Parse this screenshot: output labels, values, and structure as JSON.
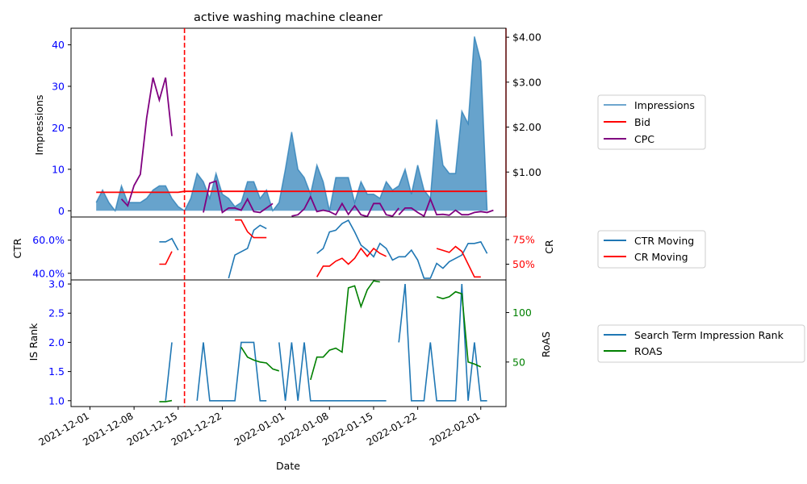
{
  "title": "active washing machine cleaner",
  "xlabel": "Date",
  "x_ticks": [
    "2021-12-01",
    "2021-12-08",
    "2021-12-15",
    "2021-12-22",
    "2022-01-01",
    "2022-01-08",
    "2022-01-15",
    "2022-01-22",
    "2022-02-01"
  ],
  "colors": {
    "impressions": "#1f77b4",
    "bid": "#ff0000",
    "cpc": "#800080",
    "ctr": "#1f77b4",
    "cr": "#ff0000",
    "isrank": "#1f77b4",
    "roas": "#008000",
    "vline": "#ff0000",
    "left_tick": "#0000ff"
  },
  "chart_data": [
    {
      "type": "area",
      "ylabel": "Impressions",
      "y_ticks": [
        "0",
        "10",
        "20",
        "30",
        "40"
      ],
      "y2_ticks": [
        "$1.00",
        "$2.00",
        "$3.00",
        "$4.00"
      ],
      "x_range": [
        "2021-11-28",
        "2022-02-05"
      ],
      "ylim": [
        -1.5,
        44
      ],
      "y2lim": [
        0,
        4.2
      ],
      "vline_date": "2021-12-16",
      "legend": [
        "Impressions",
        "Bid",
        "CPC"
      ],
      "series": [
        {
          "name": "Impressions",
          "x_start": "2021-12-02",
          "values": [
            2,
            5,
            2,
            0,
            6,
            2,
            2,
            2,
            3,
            5,
            6,
            6,
            3,
            1,
            0,
            3,
            9,
            7,
            3,
            9,
            4,
            3,
            1,
            2,
            7,
            7,
            3,
            5,
            0,
            2,
            10,
            19,
            10,
            8,
            4,
            11,
            7,
            0,
            8,
            8,
            8,
            2,
            7,
            4,
            4,
            3,
            7,
            5,
            6,
            10,
            4,
            11,
            5,
            3,
            22,
            11,
            9,
            9,
            24,
            21,
            42,
            36,
            0
          ]
        },
        {
          "name": "Bid",
          "x_start": "2021-12-02",
          "x_end": "2022-02-02",
          "values": [
            0.55,
            0.55,
            0.55,
            0.55,
            0.55,
            0.55,
            0.55,
            0.55,
            0.55,
            0.55,
            0.55,
            0.55,
            0.55,
            0.55,
            0.57,
            0.57,
            0.57,
            0.57,
            0.57,
            0.57,
            0.57,
            0.57,
            0.57,
            0.57,
            0.57,
            0.57,
            0.57,
            0.57,
            0.57,
            0.57,
            0.57,
            0.57,
            0.57,
            0.57,
            0.57,
            0.57,
            0.57,
            0.57,
            0.57,
            0.57,
            0.57,
            0.57,
            0.57,
            0.57,
            0.57,
            0.57,
            0.57,
            0.57,
            0.57,
            0.57,
            0.57,
            0.57,
            0.57,
            0.57,
            0.57,
            0.57,
            0.57,
            0.57,
            0.57,
            0.57,
            0.57,
            0.57,
            0.57
          ]
        },
        {
          "name": "CPC",
          "segments": [
            {
              "x_start": "2021-12-06",
              "values": [
                0.4,
                0.25,
                0.7,
                0.95,
                2.2,
                3.1,
                2.6,
                3.1,
                1.8
              ]
            },
            {
              "x_start": "2021-12-19",
              "values": [
                0.1,
                0.75,
                0.8,
                0.1,
                0.2,
                0.2,
                0.15,
                0.4,
                0.12,
                0.1,
                0.2,
                0.3
              ]
            },
            {
              "x_start": "2022-01-02",
              "values": [
                0.02,
                0.05,
                0.18,
                0.45,
                0.12,
                0.15,
                0.12,
                0.05,
                0.3,
                0.06,
                0.25,
                0.05,
                0.01,
                0.3,
                0.3,
                0.05,
                0.02,
                0.2
              ]
            },
            {
              "x_start": "2022-01-19",
              "values": [
                0.05,
                0.2,
                0.2,
                0.1,
                0.02,
                0.4,
                0.05,
                0.06,
                0.04,
                0.15,
                0.05,
                0.05,
                0.1,
                0.12,
                0.1,
                0.15
              ]
            }
          ]
        }
      ]
    },
    {
      "type": "line",
      "ylabel": "CTR",
      "y2label": "CR",
      "y_ticks": [
        "40.0%",
        "60.0%"
      ],
      "y2_ticks": [
        "50%",
        "75%"
      ],
      "ylim": [
        0.36,
        0.74
      ],
      "y2lim": [
        0.34,
        0.98
      ],
      "legend": [
        "CTR Moving",
        "CR Moving"
      ],
      "series": [
        {
          "name": "CTR Moving",
          "segments": [
            {
              "x_start": "2021-12-12",
              "values": [
                0.59,
                0.59,
                0.61,
                0.54
              ]
            },
            {
              "x_start": "2021-12-23",
              "values": [
                0.37,
                0.51,
                0.53,
                0.55,
                0.66,
                0.69,
                0.67
              ]
            },
            {
              "x_start": "2022-01-06",
              "values": [
                0.52,
                0.55,
                0.65,
                0.66,
                0.7,
                0.72,
                0.65,
                0.57,
                0.54,
                0.5,
                0.58,
                0.55,
                0.48,
                0.5,
                0.5,
                0.54,
                0.48,
                0.37,
                0.37,
                0.46,
                0.43,
                0.47,
                0.49,
                0.51,
                0.58,
                0.58,
                0.59,
                0.52
              ]
            }
          ]
        },
        {
          "name": "CR Moving",
          "segments": [
            {
              "x_start": "2021-12-12",
              "values": [
                0.5,
                0.5,
                0.63
              ]
            },
            {
              "x_start": "2021-12-24",
              "values": [
                0.95,
                0.95,
                0.83,
                0.77,
                0.77,
                0.77
              ]
            },
            {
              "x_start": "2022-01-06",
              "values": [
                0.37,
                0.48,
                0.48,
                0.53,
                0.56,
                0.5,
                0.56,
                0.66,
                0.58,
                0.66,
                0.61,
                0.58
              ]
            },
            {
              "x_start": "2022-01-25",
              "values": [
                0.66,
                0.64,
                0.62,
                0.68,
                0.63,
                0.5,
                0.37,
                0.37
              ]
            }
          ]
        }
      ]
    },
    {
      "type": "line",
      "ylabel": "IS Rank",
      "y2label": "RoAS",
      "y_ticks": [
        "1.0",
        "1.5",
        "2.0",
        "2.5",
        "3.0"
      ],
      "y2_ticks": [
        "50",
        "100"
      ],
      "ylim": [
        0.9,
        3.07
      ],
      "y2lim": [
        5,
        133
      ],
      "legend": [
        "Search Term Impression Rank",
        "ROAS"
      ],
      "series": [
        {
          "name": "Search Term Impression Rank",
          "segments": [
            {
              "x_start": "2021-12-13",
              "values": [
                1,
                2
              ]
            },
            {
              "x_start": "2021-12-18",
              "values": [
                1,
                2,
                1,
                1,
                1,
                1,
                1,
                2,
                2,
                2,
                1,
                1
              ]
            },
            {
              "x_start": "2021-12-31",
              "values": [
                2,
                1,
                2,
                1,
                2,
                1,
                1,
                1,
                1,
                1,
                1,
                1,
                1,
                1,
                1,
                1,
                1,
                1
              ]
            },
            {
              "x_start": "2022-01-19",
              "values": [
                2,
                3,
                1,
                1,
                1,
                2,
                1,
                1,
                1,
                1,
                3,
                1,
                2,
                1,
                1
              ]
            }
          ]
        },
        {
          "name": "ROAS",
          "segments": [
            {
              "x_start": "2021-12-12",
              "values": [
                10,
                10,
                11
              ]
            },
            {
              "x_start": "2021-12-25",
              "values": [
                65,
                55,
                52,
                50,
                49,
                43,
                41
              ]
            },
            {
              "x_start": "2022-01-05",
              "values": [
                32,
                55,
                55,
                62,
                64,
                60,
                125,
                127,
                106,
                123,
                132,
                131
              ]
            },
            {
              "x_start": "2022-01-25",
              "values": [
                116,
                114,
                116,
                121,
                119,
                50,
                48,
                45
              ]
            }
          ]
        }
      ]
    }
  ]
}
